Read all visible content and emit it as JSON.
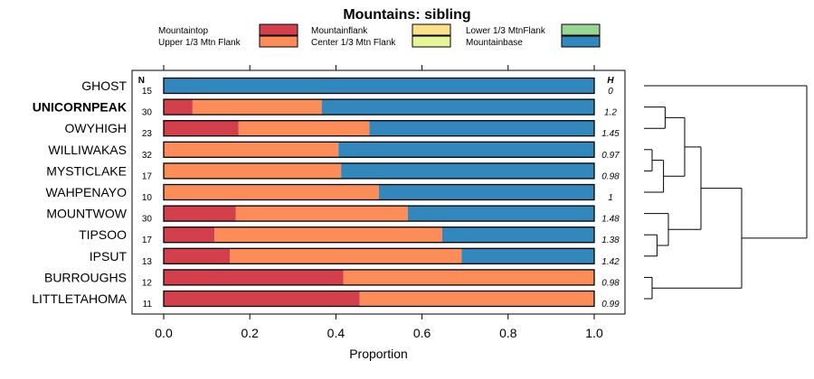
{
  "chart_data": {
    "type": "bar",
    "orientation": "horizontal",
    "stacked": true,
    "title": "Mountains: sibling",
    "xlabel": "Proportion",
    "ylabel": "",
    "xlim": [
      0,
      1
    ],
    "x_ticks": [
      "0.0",
      "0.2",
      "0.4",
      "0.6",
      "0.8",
      "1.0"
    ],
    "n_header": "N",
    "h_header": "H",
    "highlight_category": "UNICORNPEAK",
    "legend": [
      {
        "name": "Mountaintop",
        "color": "#d43f4c"
      },
      {
        "name": "Upper 1/3 Mtn Flank",
        "color": "#fc8d59"
      },
      {
        "name": "Mountainflank",
        "color": "#fee08b"
      },
      {
        "name": "Center 1/3 Mtn Flank",
        "color": "#e6f598"
      },
      {
        "name": "Lower 1/3 MtnFlank",
        "color": "#99d594"
      },
      {
        "name": "Mountainbase",
        "color": "#3288bd"
      }
    ],
    "categories": [
      "GHOST",
      "UNICORNPEAK",
      "OWYHIGH",
      "WILLIWAKAS",
      "MYSTICLAKE",
      "WAHPENAYO",
      "MOUNTWOW",
      "TIPSOO",
      "IPSUT",
      "BURROUGHS",
      "LITTLETAHOMA"
    ],
    "n": [
      "15",
      "30",
      "23",
      "32",
      "17",
      "10",
      "30",
      "17",
      "13",
      "12",
      "11"
    ],
    "h": [
      "0",
      "1.2",
      "1.45",
      "0.97",
      "0.98",
      "1",
      "1.48",
      "1.38",
      "1.42",
      "0.98",
      "0.99"
    ],
    "series": [
      {
        "name": "Mountaintop",
        "values": [
          0,
          0.067,
          0.174,
          0,
          0,
          0,
          0.167,
          0.118,
          0.154,
          0.417,
          0.455
        ]
      },
      {
        "name": "Upper 1/3 Mtn Flank",
        "values": [
          0,
          0.3,
          0.304,
          0.406,
          0.412,
          0.5,
          0.4,
          0.529,
          0.538,
          0.583,
          0.545
        ]
      },
      {
        "name": "Mountainflank",
        "values": [
          0,
          0,
          0,
          0,
          0,
          0,
          0,
          0,
          0,
          0,
          0
        ]
      },
      {
        "name": "Center 1/3 Mtn Flank",
        "values": [
          0,
          0,
          0,
          0,
          0,
          0,
          0,
          0,
          0,
          0,
          0
        ]
      },
      {
        "name": "Lower 1/3 MtnFlank",
        "values": [
          0,
          0,
          0,
          0,
          0,
          0,
          0,
          0,
          0,
          0,
          0
        ]
      },
      {
        "name": "Mountainbase",
        "values": [
          1,
          0.633,
          0.522,
          0.594,
          0.588,
          0.5,
          0.433,
          0.353,
          0.308,
          0,
          0
        ]
      }
    ],
    "dendrogram": {
      "merges": [
        {
          "a": 3,
          "b": 4,
          "height": 0.05
        },
        {
          "a": 9,
          "b": 10,
          "height": 0.05
        },
        {
          "a": 7,
          "b": 8,
          "height": 0.08
        },
        {
          "a": "m0",
          "b": 5,
          "height": 0.12
        },
        {
          "a": 1,
          "b": 2,
          "height": 0.13
        },
        {
          "a": "m4",
          "b": "m3",
          "height": 0.25
        },
        {
          "a": 6,
          "b": "m2",
          "height": 0.15
        },
        {
          "a": "m5",
          "b": "m6",
          "height": 0.35
        },
        {
          "a": "m7",
          "b": "m1",
          "height": 0.6
        },
        {
          "a": 0,
          "b": "m8",
          "height": 1.0
        }
      ]
    }
  }
}
